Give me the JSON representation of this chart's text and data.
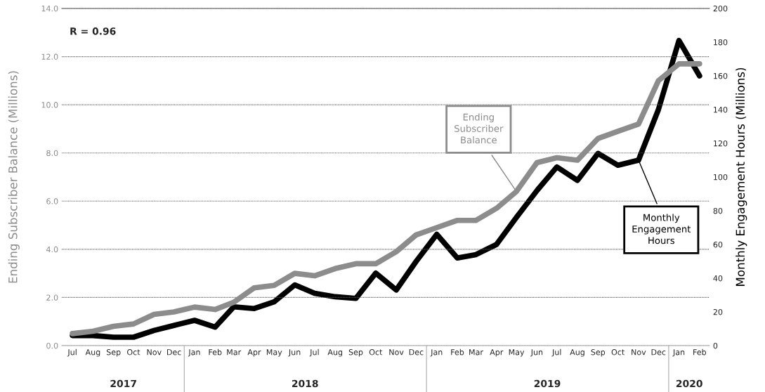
{
  "chart_data": {
    "type": "line",
    "ylabel": "Ending Subscriber Balance (Millions)",
    "y2label": "Monthly Engagement Hours (Millions)",
    "x": [
      "2017-07",
      "2017-08",
      "2017-09",
      "2017-10",
      "2017-11",
      "2017-12",
      "2018-01",
      "2018-02",
      "2018-03",
      "2018-04",
      "2018-05",
      "2018-06",
      "2018-07",
      "2018-08",
      "2018-09",
      "2018-10",
      "2018-11",
      "2018-12",
      "2019-01",
      "2019-02",
      "2019-03",
      "2019-04",
      "2019-05",
      "2019-06",
      "2019-07",
      "2019-08",
      "2019-09",
      "2019-10",
      "2019-11",
      "2019-12",
      "2020-01",
      "2020-02"
    ],
    "series": [
      {
        "name": "Ending Subscriber Balance",
        "color": "#8c8c8c",
        "values": [
          0.5,
          0.6,
          0.8,
          0.9,
          1.3,
          1.4,
          1.6,
          1.5,
          1.8,
          2.4,
          2.5,
          3.0,
          2.9,
          3.2,
          3.4,
          3.4,
          3.9,
          4.6,
          4.9,
          5.2,
          5.2,
          5.7,
          6.4,
          7.6,
          7.8,
          7.7,
          8.6,
          8.9,
          9.2,
          11.0,
          11.7,
          11.7
        ]
      },
      {
        "name": "Monthly Engagement Hours",
        "color": "#000000",
        "axis": "y2",
        "values": [
          6,
          6,
          5,
          5,
          9,
          12,
          15,
          11,
          23,
          22,
          26,
          36,
          31,
          29,
          28,
          43,
          33,
          50,
          66,
          52,
          54,
          60,
          76,
          92,
          106,
          98,
          114,
          107,
          110,
          140,
          181,
          160
        ]
      }
    ],
    "ylim": [
      0,
      14
    ],
    "yticks": [
      {
        "value": 0,
        "label": "0.0"
      },
      {
        "value": 2,
        "label": "2.0"
      },
      {
        "value": 4,
        "label": "4.0"
      },
      {
        "value": 6,
        "label": "6.0"
      },
      {
        "value": 8,
        "label": "8.0"
      },
      {
        "value": 10,
        "label": "10.0"
      },
      {
        "value": 12,
        "label": "12.0"
      },
      {
        "value": 14,
        "label": "14.0"
      }
    ],
    "y2lim": [
      0,
      200
    ],
    "y2ticks": [
      0,
      20,
      40,
      60,
      80,
      100,
      120,
      140,
      160,
      180,
      200
    ],
    "xticks": [
      {
        "value": "2017-07",
        "label": "Jul"
      },
      {
        "value": "2017-08",
        "label": "Aug"
      },
      {
        "value": "2017-09",
        "label": "Sep"
      },
      {
        "value": "2017-10",
        "label": "Oct"
      },
      {
        "value": "2017-11",
        "label": "Nov"
      },
      {
        "value": "2017-12",
        "label": "Dec"
      },
      {
        "value": "2018-01",
        "label": "Jan"
      },
      {
        "value": "2018-02",
        "label": "Feb"
      },
      {
        "value": "2018-03",
        "label": "Mar"
      },
      {
        "value": "2018-04",
        "label": "Apr"
      },
      {
        "value": "2018-05",
        "label": "May"
      },
      {
        "value": "2018-06",
        "label": "Jun"
      },
      {
        "value": "2018-07",
        "label": "Jul"
      },
      {
        "value": "2018-08",
        "label": "Aug"
      },
      {
        "value": "2018-09",
        "label": "Sep"
      },
      {
        "value": "2018-10",
        "label": "Oct"
      },
      {
        "value": "2018-11",
        "label": "Nov"
      },
      {
        "value": "2018-12",
        "label": "Dec"
      },
      {
        "value": "2019-01",
        "label": "Jan"
      },
      {
        "value": "2019-02",
        "label": "Feb"
      },
      {
        "value": "2019-03",
        "label": "Mar"
      },
      {
        "value": "2019-04",
        "label": "Apr"
      },
      {
        "value": "2019-05",
        "label": "May"
      },
      {
        "value": "2019-06",
        "label": "Jun"
      },
      {
        "value": "2019-07",
        "label": "Jul"
      },
      {
        "value": "2019-08",
        "label": "Aug"
      },
      {
        "value": "2019-09",
        "label": "Sep"
      },
      {
        "value": "2019-10",
        "label": "Oct"
      },
      {
        "value": "2019-11",
        "label": "Nov"
      },
      {
        "value": "2019-12",
        "label": "Dec"
      },
      {
        "value": "2020-01",
        "label": "Jan"
      },
      {
        "value": "2020-02",
        "label": "Feb"
      }
    ],
    "annotations": [
      "R = 0.96",
      "2017",
      "2018",
      "2019",
      "2020"
    ],
    "xlim": [
      "2017-06-15",
      "2020-02-16"
    ],
    "grid": "y",
    "legend": false,
    "marker": "none",
    "line_style": "solid"
  }
}
